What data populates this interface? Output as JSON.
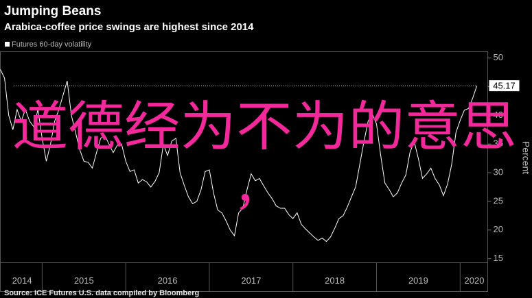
{
  "chart_data": {
    "type": "line",
    "title": "Jumping Beans",
    "subtitle": "Arabica-coffee price swings are highest since 2014",
    "y_label": "Percent",
    "source": "Source: ICE Futures U.S. data compiled by Bloomberg",
    "overlay_text": "道德经为不为的意思",
    "overlay_mark": "，",
    "xlim": [
      2014.5,
      2020.33
    ],
    "xticks": [
      {
        "value": 2014.76,
        "label": "2014"
      },
      {
        "value": 2015.5,
        "label": "2015"
      },
      {
        "value": 2016.5,
        "label": "2016"
      },
      {
        "value": 2017.5,
        "label": "2017"
      },
      {
        "value": 2018.5,
        "label": "2018"
      },
      {
        "value": 2019.5,
        "label": "2019"
      },
      {
        "value": 2020.17,
        "label": "2020"
      }
    ],
    "year_boundaries": [
      2015,
      2016,
      2017,
      2018,
      2019,
      2020
    ],
    "ylim": [
      14.3,
      51.1
    ],
    "yticks": [
      15,
      20,
      25,
      30,
      35,
      40,
      45,
      50
    ],
    "x": [
      2014.5,
      2014.55,
      2014.6,
      2014.65,
      2014.7,
      2014.75,
      2014.8,
      2014.85,
      2014.9,
      2014.95,
      2015.0,
      2015.05,
      2015.1,
      2015.15,
      2015.2,
      2015.25,
      2015.3,
      2015.35,
      2015.4,
      2015.45,
      2015.5,
      2015.55,
      2015.6,
      2015.65,
      2015.7,
      2015.75,
      2015.8,
      2015.85,
      2015.9,
      2015.95,
      2016.0,
      2016.05,
      2016.1,
      2016.15,
      2016.2,
      2016.25,
      2016.3,
      2016.35,
      2016.4,
      2016.45,
      2016.5,
      2016.55,
      2016.6,
      2016.65,
      2016.7,
      2016.75,
      2016.8,
      2016.85,
      2016.9,
      2016.95,
      2017.0,
      2017.05,
      2017.1,
      2017.15,
      2017.2,
      2017.25,
      2017.3,
      2017.35,
      2017.4,
      2017.45,
      2017.5,
      2017.55,
      2017.6,
      2017.65,
      2017.7,
      2017.75,
      2017.8,
      2017.85,
      2017.9,
      2017.95,
      2018.0,
      2018.05,
      2018.1,
      2018.15,
      2018.2,
      2018.25,
      2018.3,
      2018.35,
      2018.4,
      2018.45,
      2018.5,
      2018.55,
      2018.6,
      2018.65,
      2018.7,
      2018.75,
      2018.8,
      2018.85,
      2018.9,
      2018.95,
      2019.0,
      2019.05,
      2019.1,
      2019.15,
      2019.2,
      2019.25,
      2019.3,
      2019.35,
      2019.4,
      2019.45,
      2019.5,
      2019.55,
      2019.6,
      2019.65,
      2019.7,
      2019.75,
      2019.8,
      2019.85,
      2019.9,
      2019.95,
      2020.0,
      2020.05,
      2020.1,
      2020.15,
      2020.2
    ],
    "series": [
      {
        "name": "Futures 60-day volatility",
        "color": "#ffffff",
        "values": [
          48,
          46.5,
          40,
          37.5,
          41,
          39,
          41,
          39,
          38,
          41,
          36,
          32,
          35,
          39,
          41,
          43.5,
          46,
          40,
          37,
          34,
          32,
          31.8,
          30.8,
          33.5,
          36,
          36.5,
          35,
          33.5,
          34.8,
          35,
          32,
          30.2,
          30.5,
          28.2,
          28.8,
          28.4,
          27.5,
          28.5,
          30,
          35,
          33,
          35.5,
          36,
          30,
          27.8,
          25.8,
          24.6,
          25,
          27,
          30.2,
          30.5,
          26.5,
          23.5,
          23,
          21.6,
          20,
          19,
          23,
          23.8,
          27,
          29.8,
          28.6,
          29,
          27.7,
          26.5,
          25.5,
          24.2,
          23.8,
          23.8,
          22.7,
          22,
          23,
          21,
          20.2,
          19.5,
          18.8,
          18.2,
          18.6,
          18,
          18.8,
          20.3,
          22,
          22.5,
          24,
          25.8,
          27.5,
          31.5,
          35.5,
          39,
          40.2,
          38.5,
          33,
          28.2,
          27.1,
          25.8,
          26.5,
          28.2,
          29.6,
          33.5,
          35.5,
          32.5,
          29,
          29.8,
          30.8,
          29,
          27.9,
          26,
          28,
          31.5,
          37,
          39.1,
          40.9,
          41.2,
          43,
          45.17
        ]
      }
    ]
  }
}
